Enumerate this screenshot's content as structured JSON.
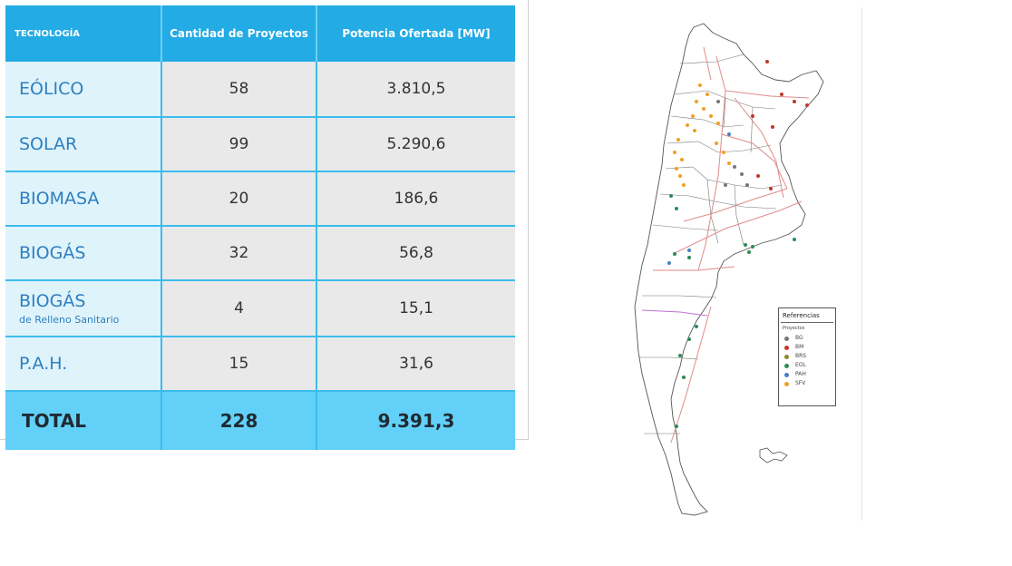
{
  "table": {
    "headers": {
      "technology": "TECNOLOGÍA",
      "count": "Cantidad de Proyectos",
      "power": "Potencia Ofertada [MW]"
    },
    "rows": [
      {
        "technology": "EÓLICO",
        "subtitle": "",
        "count": "58",
        "power": "3.810,5"
      },
      {
        "technology": "SOLAR",
        "subtitle": "",
        "count": "99",
        "power": "5.290,6"
      },
      {
        "technology": "BIOMASA",
        "subtitle": "",
        "count": "20",
        "power": "186,6"
      },
      {
        "technology": "BIOGÁS",
        "subtitle": "",
        "count": "32",
        "power": "56,8"
      },
      {
        "technology": "BIOGÁS",
        "subtitle": "de Relleno Sanitario",
        "count": "4",
        "power": "15,1"
      },
      {
        "technology": "P.A.H.",
        "subtitle": "",
        "count": "15",
        "power": "31,6"
      }
    ],
    "total": {
      "label": "TOTAL",
      "count": "228",
      "power": "9.391,3"
    }
  },
  "map": {
    "legend": {
      "title": "Referencias",
      "subtitle": "Proyectos",
      "items": [
        {
          "code": "BG",
          "color": "#777777"
        },
        {
          "code": "BM",
          "color": "#c0392b"
        },
        {
          "code": "BRS",
          "color": "#8a8a2a"
        },
        {
          "code": "EOL",
          "color": "#2e8b57"
        },
        {
          "code": "PAH",
          "color": "#4a7fc1"
        },
        {
          "code": "SFV",
          "color": "#f0a020"
        }
      ]
    }
  }
}
